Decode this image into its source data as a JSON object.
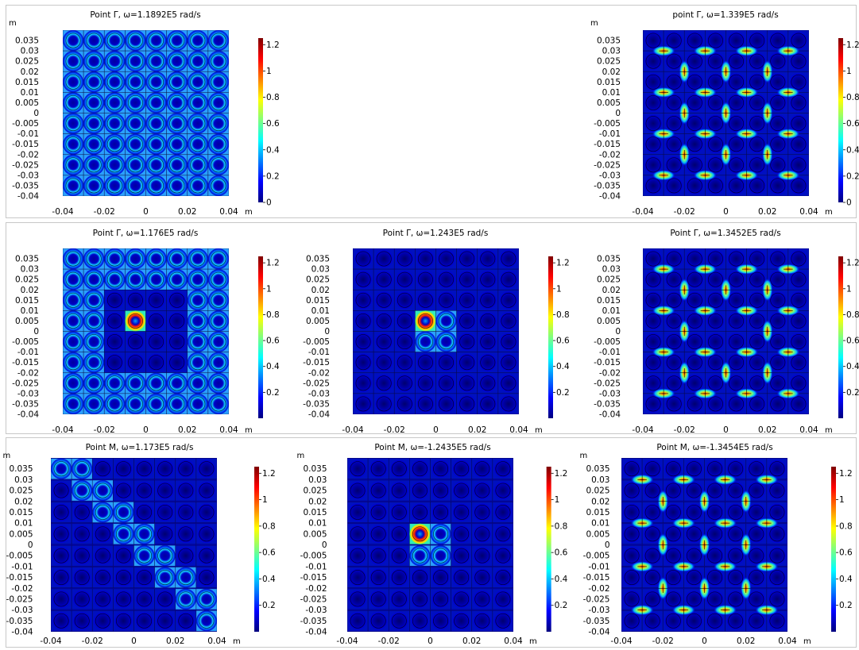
{
  "colormap": [
    "#00007f",
    "#0000ff",
    "#007fff",
    "#00ffff",
    "#7fff7f",
    "#ffff00",
    "#ff7f00",
    "#ff0000",
    "#7f0000"
  ],
  "chart_data": [
    {
      "type": "heatmap",
      "row": 0,
      "col": 0,
      "title": "Point Γ, ω=1.1892E5 rad/s",
      "xunit": "m",
      "yunit": "m",
      "xlim": [
        -0.04,
        0.04
      ],
      "ylim": [
        -0.04,
        0.04
      ],
      "x_ticks": [
        "-0.04",
        "-0.02",
        "0",
        "0.02",
        "0.04"
      ],
      "y_ticks": [
        "0.035",
        "0.03",
        "0.025",
        "0.02",
        "0.015",
        "0.01",
        "0.005",
        "0",
        "-0.005",
        "-0.01",
        "-0.015",
        "-0.02",
        "-0.025",
        "-0.03",
        "-0.035",
        "-0.04"
      ],
      "colorbar_ticks": [
        "1.2",
        "1",
        "0.8",
        "0.6",
        "0.4",
        "0.2",
        "0"
      ],
      "colorbar_range": [
        0,
        1.25
      ],
      "pattern": "uniform"
    },
    {
      "type": "heatmap",
      "row": 0,
      "col": 2,
      "title": "point Γ, ω=1.339E5 rad/s",
      "xunit": "m",
      "yunit": "m",
      "xlim": [
        -0.04,
        0.04
      ],
      "ylim": [
        -0.04,
        0.04
      ],
      "x_ticks": [
        "-0.04",
        "-0.02",
        "0",
        "0.02",
        "0.04"
      ],
      "y_ticks": [
        "0.035",
        "0.03",
        "0.025",
        "0.02",
        "0.015",
        "0.01",
        "0.005",
        "0",
        "-0.005",
        "-0.01",
        "-0.015",
        "-0.02",
        "-0.025",
        "-0.03",
        "-0.035",
        "-0.04"
      ],
      "colorbar_ticks": [
        "1.2",
        "1",
        "0.8",
        "0.6",
        "0.4",
        "0.2",
        "0"
      ],
      "colorbar_range": [
        0,
        1.25
      ],
      "pattern": "stars"
    },
    {
      "type": "heatmap",
      "row": 1,
      "col": 0,
      "title": "Point Γ, ω=1.176E5 rad/s",
      "xunit": "m",
      "yunit": "",
      "xlim": [
        -0.04,
        0.04
      ],
      "ylim": [
        -0.04,
        0.04
      ],
      "x_ticks": [
        "-0.04",
        "-0.02",
        "0",
        "0.02",
        "0.04"
      ],
      "y_ticks": [
        "0.035",
        "0.03",
        "0.025",
        "0.02",
        "0.015",
        "0.01",
        "0.005",
        "0",
        "-0.005",
        "-0.01",
        "-0.015",
        "-0.02",
        "-0.025",
        "-0.03",
        "-0.035",
        "-0.04"
      ],
      "colorbar_ticks": [
        "1.2",
        "1",
        "0.8",
        "0.6",
        "0.4",
        "0.2"
      ],
      "colorbar_range": [
        0,
        1.25
      ],
      "pattern": "defect"
    },
    {
      "type": "heatmap",
      "row": 1,
      "col": 1,
      "title": "Point Γ,  ω=1.243E5 rad/s",
      "xunit": "m",
      "yunit": "",
      "xlim": [
        -0.04,
        0.04
      ],
      "ylim": [
        -0.04,
        0.04
      ],
      "x_ticks": [
        "-0.04",
        "-0.02",
        "0",
        "0.02",
        "0.04"
      ],
      "y_ticks": [
        "0.035",
        "0.03",
        "0.025",
        "0.02",
        "0.015",
        "0.01",
        "0.005",
        "0",
        "-0.005",
        "-0.01",
        "-0.015",
        "-0.02",
        "-0.025",
        "-0.03",
        "-0.035",
        "-0.04"
      ],
      "colorbar_ticks": [
        "1.2",
        "1",
        "0.8",
        "0.6",
        "0.4",
        "0.2"
      ],
      "colorbar_range": [
        0,
        1.25
      ],
      "pattern": "localized"
    },
    {
      "type": "heatmap",
      "row": 1,
      "col": 2,
      "title": "Point Γ, ω=1.3452E5 rad/s",
      "xunit": "m",
      "yunit": "",
      "xlim": [
        -0.04,
        0.04
      ],
      "ylim": [
        -0.04,
        0.04
      ],
      "x_ticks": [
        "-0.04",
        "-0.02",
        "0",
        "0.02",
        "0.04"
      ],
      "y_ticks": [
        "0.035",
        "0.03",
        "0.025",
        "0.02",
        "0.015",
        "0.01",
        "0.005",
        "0",
        "-0.005",
        "-0.01",
        "-0.015",
        "-0.02",
        "-0.025",
        "-0.03",
        "-0.035",
        "-0.04"
      ],
      "colorbar_ticks": [
        "1.2",
        "1",
        "0.8",
        "0.6",
        "0.4",
        "0.2"
      ],
      "colorbar_range": [
        0,
        1.25
      ],
      "pattern": "stars-defect"
    },
    {
      "type": "heatmap",
      "row": 2,
      "col": 0,
      "title": "Point M, ω=1.173E5 rad/s",
      "xunit": "m",
      "yunit": "m",
      "xlim": [
        -0.04,
        0.04
      ],
      "ylim": [
        -0.04,
        0.04
      ],
      "x_ticks": [
        "-0.04",
        "-0.02",
        "0",
        "0.02",
        "0.04"
      ],
      "y_ticks": [
        "0.035",
        "0.03",
        "0.025",
        "0.02",
        "0.015",
        "0.01",
        "0.005",
        "0",
        "-0.005",
        "-0.01",
        "-0.015",
        "-0.02",
        "-0.025",
        "-0.03",
        "-0.035",
        "-0.04"
      ],
      "colorbar_ticks": [
        "1.2",
        "1",
        "0.8",
        "0.6",
        "0.4",
        "0.2"
      ],
      "colorbar_range": [
        0,
        1.25
      ],
      "pattern": "diagonal"
    },
    {
      "type": "heatmap",
      "row": 2,
      "col": 1,
      "title": "Point M, ω=-1.2435E5 rad/s",
      "xunit": "m",
      "yunit": "m",
      "xlim": [
        -0.04,
        0.04
      ],
      "ylim": [
        -0.04,
        0.04
      ],
      "x_ticks": [
        "-0.04",
        "-0.02",
        "0",
        "0.02",
        "0.04"
      ],
      "y_ticks": [
        "0.035",
        "0.03",
        "0.025",
        "0.02",
        "0.015",
        "0.01",
        "0.005",
        "0",
        "-0.005",
        "-0.01",
        "-0.015",
        "-0.02",
        "-0.025",
        "-0.03",
        "-0.035",
        "-0.04"
      ],
      "colorbar_ticks": [
        "1.2",
        "1",
        "0.8",
        "0.6",
        "0.4",
        "0.2"
      ],
      "colorbar_range": [
        0,
        1.25
      ],
      "pattern": "localized-M"
    },
    {
      "type": "heatmap",
      "row": 2,
      "col": 2,
      "title": "Point M, ω=-1.3454E5 rad/s",
      "xunit": "m",
      "yunit": "m",
      "xlim": [
        -0.04,
        0.04
      ],
      "ylim": [
        -0.04,
        0.04
      ],
      "x_ticks": [
        "-0.04",
        "-0.02",
        "0",
        "0.02",
        "0.04"
      ],
      "y_ticks": [
        "0.035",
        "0.03",
        "0.025",
        "0.02",
        "0.015",
        "0.01",
        "0.005",
        "0",
        "-0.005",
        "-0.01",
        "-0.015",
        "-0.02",
        "-0.025",
        "-0.03",
        "-0.035",
        "-0.04"
      ],
      "colorbar_ticks": [
        "1.2",
        "1",
        "0.8",
        "0.6",
        "0.4",
        "0.2"
      ],
      "colorbar_range": [
        0,
        1.25
      ],
      "pattern": "stars-M"
    }
  ]
}
